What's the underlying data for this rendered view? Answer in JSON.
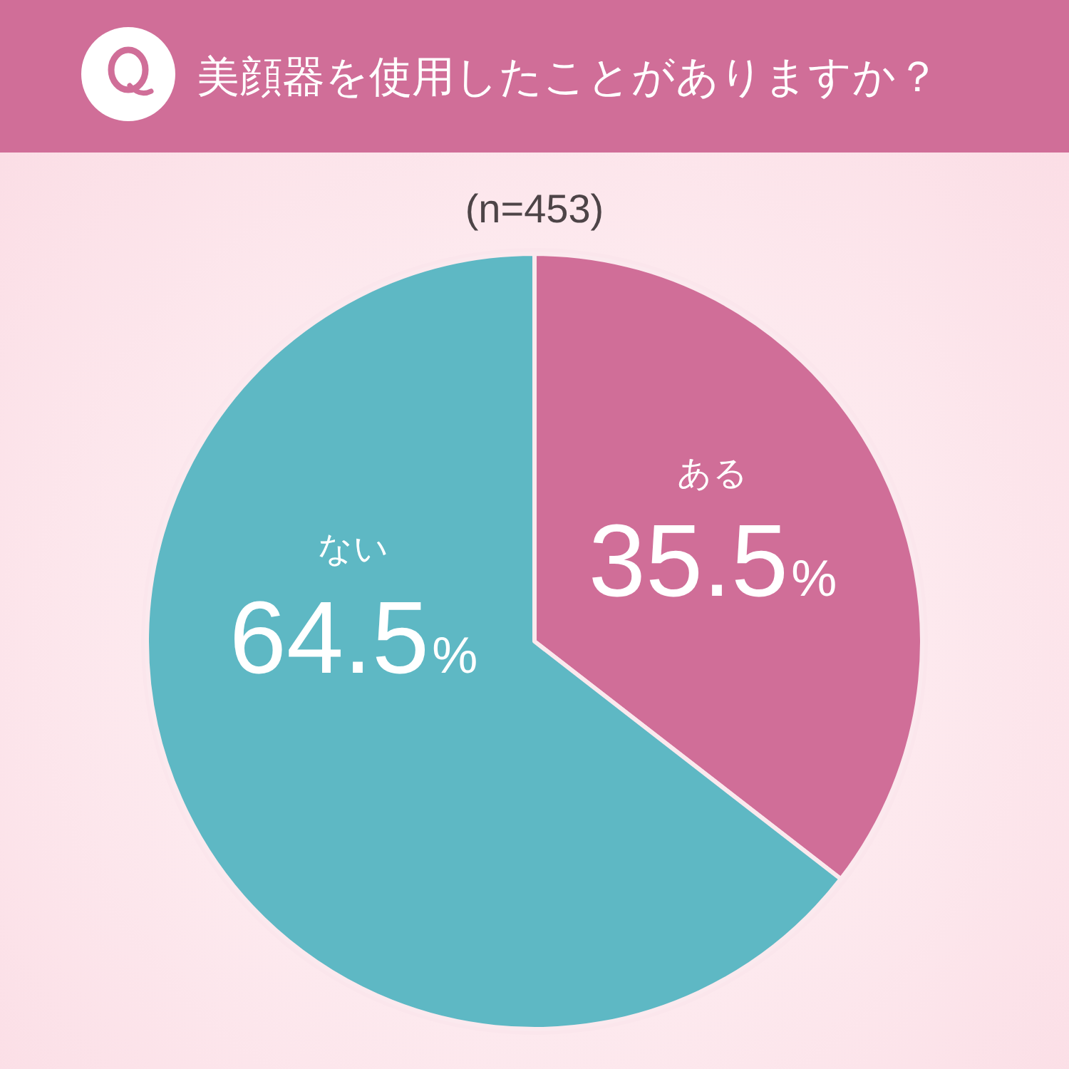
{
  "chart_data": {
    "type": "pie",
    "title": "美顔器を使用したことがありますか？",
    "subtitle": "(n=453)",
    "categories": [
      "ある",
      "ない"
    ],
    "values": [
      35.5,
      64.5
    ],
    "colors": [
      "#d06e98",
      "#5eb8c4"
    ],
    "value_labels": [
      "35.5%",
      "64.5%"
    ]
  }
}
